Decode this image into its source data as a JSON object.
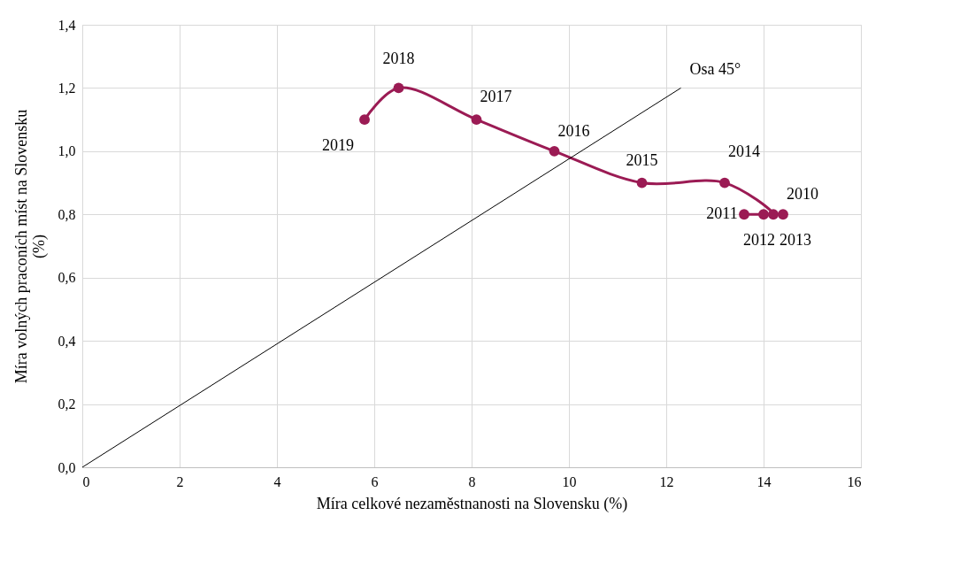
{
  "chart_data": {
    "type": "line",
    "xlabel": "Míra celkové nezaměstnanosti na Slovensku (%)",
    "ylabel": "Míra volných praconích míst na Slovensku (%)",
    "xlim": [
      0,
      16
    ],
    "xticks": [
      0,
      2,
      4,
      6,
      8,
      10,
      12,
      14,
      16
    ],
    "ylim": [
      0,
      1.4
    ],
    "yticks": [
      {
        "value": 0,
        "label": "0,0"
      },
      {
        "value": 0.2,
        "label": "0,2"
      },
      {
        "value": 0.4,
        "label": "0,4"
      },
      {
        "value": 0.6,
        "label": "0,6"
      },
      {
        "value": 0.8,
        "label": "0,8"
      },
      {
        "value": 1.0,
        "label": "1,0"
      },
      {
        "value": 1.2,
        "label": "1,2"
      },
      {
        "value": 1.4,
        "label": "1,4"
      }
    ],
    "grid": true,
    "series": [
      {
        "color": "#9b1b54",
        "marker": "circle",
        "x": [
          14.4,
          13.6,
          14.0,
          14.2,
          13.2,
          11.5,
          9.7,
          8.1,
          6.5,
          5.8
        ],
        "values": [
          0.8,
          0.8,
          0.8,
          0.8,
          0.9,
          0.9,
          1.0,
          1.1,
          1.2,
          1.1
        ]
      },
      {
        "name": "Osa 45°",
        "color": "#000000",
        "marker": "none",
        "x": [
          0,
          12.3
        ],
        "values": [
          0,
          1.2
        ]
      }
    ],
    "annotations": [
      {
        "text": "2010",
        "x": 14.4,
        "y": 0.8
      },
      {
        "text": "2011",
        "x": 13.6,
        "y": 0.8
      },
      {
        "text": "2012",
        "x": 14.0,
        "y": 0.8
      },
      {
        "text": "2013",
        "x": 14.2,
        "y": 0.8
      },
      {
        "text": "2014",
        "x": 13.2,
        "y": 0.9
      },
      {
        "text": "2015",
        "x": 11.5,
        "y": 0.9
      },
      {
        "text": "2016",
        "x": 9.7,
        "y": 1.0
      },
      {
        "text": "2017",
        "x": 8.1,
        "y": 1.1
      },
      {
        "text": "2018",
        "x": 6.5,
        "y": 1.2
      },
      {
        "text": "2019",
        "x": 5.8,
        "y": 1.1
      }
    ]
  }
}
